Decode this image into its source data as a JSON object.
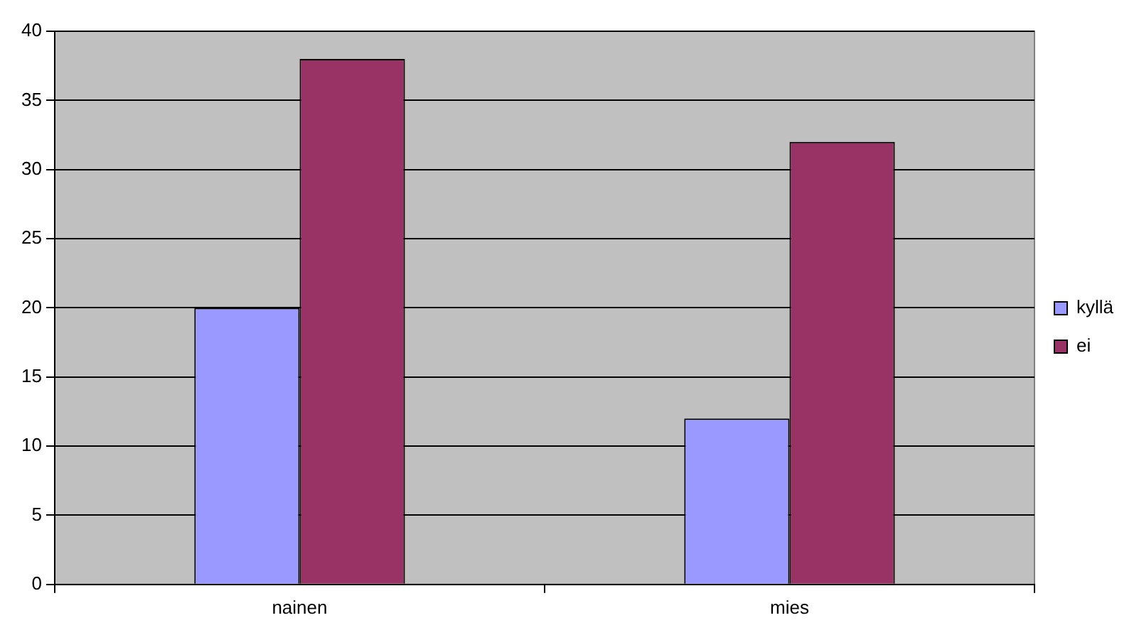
{
  "chart_data": {
    "type": "bar",
    "categories": [
      "nainen",
      "mies"
    ],
    "series": [
      {
        "name": "kyllä",
        "color": "#9999ff",
        "values": [
          20,
          12
        ]
      },
      {
        "name": "ei",
        "color": "#993366",
        "values": [
          38,
          32
        ]
      }
    ],
    "ylim": [
      0,
      40
    ],
    "yticks": [
      0,
      5,
      10,
      15,
      20,
      25,
      30,
      35,
      40
    ],
    "grid": "y",
    "legend": "right"
  }
}
